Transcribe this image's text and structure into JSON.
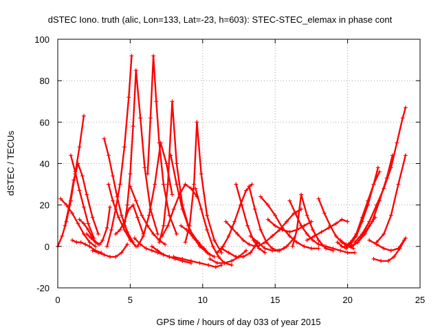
{
  "chart_data": {
    "type": "scatter",
    "title": "dSTEC Iono. truth (alic, Lon=133, Lat=-23, h=603): STEC-STEC_elemax in phase cont",
    "xlabel": "GPS time / hours of day 033 of year 2015",
    "ylabel": "dSTEC  / TECUs",
    "xlim": [
      0,
      25
    ],
    "ylim": [
      -20,
      100
    ],
    "x_ticks": [
      0,
      5,
      10,
      15,
      20,
      25
    ],
    "y_ticks": [
      -20,
      0,
      20,
      40,
      60,
      80,
      100
    ],
    "x_tick_labels": [
      "0",
      "5",
      "10",
      "15",
      "20",
      "25"
    ],
    "y_tick_labels": [
      "-20",
      "0",
      "20",
      "40",
      "60",
      "80",
      "100"
    ],
    "grid": true,
    "marker": "+",
    "color": "#ff0000",
    "series": [
      {
        "x": [
          0.0,
          0.3,
          0.6,
          0.9,
          1.2,
          1.5,
          1.8
        ],
        "y": [
          0,
          5,
          12,
          22,
          35,
          48,
          63
        ]
      },
      {
        "x": [
          0.2,
          0.6,
          1.0,
          1.4,
          1.8,
          2.2,
          2.6
        ],
        "y": [
          23,
          20,
          16,
          11,
          6,
          2,
          0
        ]
      },
      {
        "x": [
          0.5,
          0.8,
          1.1,
          1.4,
          1.7,
          2.0,
          2.4,
          2.8
        ],
        "y": [
          10,
          20,
          32,
          40,
          34,
          25,
          14,
          6
        ]
      },
      {
        "x": [
          0.9,
          1.2,
          1.5,
          1.8,
          2.1,
          2.5
        ],
        "y": [
          44,
          36,
          27,
          19,
          11,
          4
        ]
      },
      {
        "x": [
          1.0,
          1.3,
          1.6,
          1.9,
          2.2,
          2.6,
          3.0
        ],
        "y": [
          3,
          2,
          2,
          1,
          0,
          -2,
          -3
        ]
      },
      {
        "x": [
          1.5,
          1.8,
          2.1,
          2.4,
          2.8
        ],
        "y": [
          13,
          11,
          8,
          4,
          1
        ]
      },
      {
        "x": [
          2.0,
          2.3,
          2.6,
          2.9,
          3.1,
          3.4,
          3.6
        ],
        "y": [
          6,
          4,
          2,
          1,
          3,
          9,
          19
        ]
      },
      {
        "x": [
          2.4,
          2.8,
          3.2,
          3.6,
          4.0,
          4.4,
          4.8
        ],
        "y": [
          -2,
          -3,
          -4,
          -5,
          -5,
          -3,
          1
        ]
      },
      {
        "x": [
          3.2,
          3.5,
          3.8,
          4.1,
          4.4,
          4.8,
          5.2
        ],
        "y": [
          52,
          44,
          34,
          24,
          15,
          7,
          2
        ]
      },
      {
        "x": [
          3.5,
          3.8,
          4.2,
          4.6,
          5.0,
          5.4
        ],
        "y": [
          30,
          22,
          14,
          8,
          3,
          0
        ]
      },
      {
        "x": [
          3.4,
          3.7,
          4.0,
          4.3,
          4.6,
          4.9,
          5.1
        ],
        "y": [
          0,
          8,
          18,
          30,
          48,
          72,
          92
        ]
      },
      {
        "x": [
          4.0,
          4.3,
          4.6,
          4.9,
          5.2,
          5.5,
          5.9
        ],
        "y": [
          6,
          8,
          12,
          18,
          20,
          14,
          6
        ]
      },
      {
        "x": [
          4.6,
          4.8,
          5.0,
          5.2,
          5.4,
          5.7,
          6.0,
          6.4,
          6.9
        ],
        "y": [
          10,
          20,
          35,
          58,
          85,
          62,
          38,
          18,
          6
        ]
      },
      {
        "x": [
          5.0,
          5.4,
          5.8,
          6.2,
          6.6,
          7.0,
          7.4
        ],
        "y": [
          29,
          22,
          15,
          10,
          6,
          3,
          1
        ]
      },
      {
        "x": [
          5.3,
          5.7,
          6.1,
          6.5,
          6.9,
          7.3,
          7.7
        ],
        "y": [
          4,
          1,
          -1,
          -2,
          -3,
          -4,
          -5
        ]
      },
      {
        "x": [
          6.2,
          6.4,
          6.6,
          6.8,
          7.0,
          7.3,
          7.7,
          8.2
        ],
        "y": [
          35,
          62,
          92,
          70,
          50,
          30,
          15,
          6
        ]
      },
      {
        "x": [
          5.5,
          5.9,
          6.3,
          6.7,
          7.1,
          7.5,
          7.9
        ],
        "y": [
          0,
          5,
          15,
          30,
          50,
          40,
          25
        ]
      },
      {
        "x": [
          6.5,
          6.9,
          7.3,
          7.7,
          8.1,
          8.6,
          9.2
        ],
        "y": [
          0,
          -2,
          -4,
          -5,
          -6,
          -7,
          -8
        ]
      },
      {
        "x": [
          7.0,
          7.3,
          7.6,
          7.9,
          8.2,
          8.6,
          9.1,
          9.7
        ],
        "y": [
          2,
          10,
          30,
          70,
          40,
          20,
          8,
          2
        ]
      },
      {
        "x": [
          7.8,
          8.2,
          8.6,
          9.0,
          9.4,
          9.8,
          10.3,
          10.8
        ],
        "y": [
          44,
          30,
          18,
          10,
          4,
          0,
          -3,
          -5
        ]
      },
      {
        "x": [
          7.2,
          7.6,
          8.0,
          8.4,
          8.8,
          9.2,
          9.6
        ],
        "y": [
          5,
          10,
          18,
          25,
          30,
          28,
          24
        ]
      },
      {
        "x": [
          8.5,
          8.9,
          9.3,
          9.7,
          10.1,
          10.5
        ],
        "y": [
          10,
          8,
          5,
          2,
          -1,
          -4
        ]
      },
      {
        "x": [
          8.8,
          9.1,
          9.4,
          9.6,
          9.9,
          10.3,
          10.8,
          11.3
        ],
        "y": [
          2,
          10,
          30,
          60,
          35,
          15,
          3,
          -3
        ]
      },
      {
        "x": [
          9.5,
          9.9,
          10.3,
          10.7,
          11.1,
          11.5,
          12.0
        ],
        "y": [
          28,
          18,
          8,
          0,
          -5,
          -8,
          -9
        ]
      },
      {
        "x": [
          8.0,
          8.6,
          9.2,
          9.8,
          10.4,
          10.9,
          11.3
        ],
        "y": [
          -5,
          -6,
          -7,
          -8,
          -9,
          -10,
          -9
        ]
      },
      {
        "x": [
          10.5,
          11.0,
          11.5,
          12.0,
          12.5,
          13.0
        ],
        "y": [
          -6,
          -8,
          -8,
          -7,
          -5,
          -2
        ]
      },
      {
        "x": [
          11.0,
          11.4,
          11.8,
          12.2,
          12.6,
          13.0,
          13.4
        ],
        "y": [
          -3,
          0,
          5,
          12,
          20,
          27,
          30
        ]
      },
      {
        "x": [
          11.3,
          11.8,
          12.3,
          12.8,
          13.3,
          13.8
        ],
        "y": [
          -1,
          -3,
          -5,
          -5,
          -3,
          2
        ]
      },
      {
        "x": [
          12.3,
          12.7,
          13.1,
          13.5,
          13.9,
          14.3
        ],
        "y": [
          30,
          20,
          10,
          3,
          -1,
          -3
        ]
      },
      {
        "x": [
          11.6,
          12.0,
          12.4,
          12.8,
          13.2,
          13.6
        ],
        "y": [
          12,
          9,
          6,
          3,
          1,
          0
        ]
      },
      {
        "x": [
          13.2,
          13.6,
          14.0,
          14.4,
          14.8,
          15.2,
          15.6
        ],
        "y": [
          29,
          18,
          8,
          2,
          -1,
          -2,
          -1
        ]
      },
      {
        "x": [
          13.3,
          13.8,
          14.3,
          14.8,
          15.3,
          15.8,
          16.3
        ],
        "y": [
          5,
          2,
          -1,
          -2,
          -2,
          0,
          4
        ]
      },
      {
        "x": [
          13.8,
          14.3,
          14.8,
          15.3,
          15.8,
          16.3,
          16.8
        ],
        "y": [
          0,
          2,
          5,
          8,
          12,
          16,
          18
        ]
      },
      {
        "x": [
          14.5,
          15.0,
          15.5,
          16.0,
          16.5,
          17.0,
          17.5
        ],
        "y": [
          13,
          10,
          8,
          7,
          8,
          10,
          12
        ]
      },
      {
        "x": [
          14.0,
          14.5,
          15.0,
          15.5,
          16.0,
          16.5,
          17.0,
          17.5,
          18.0
        ],
        "y": [
          24,
          20,
          15,
          9,
          5,
          2,
          0,
          -1,
          -1
        ]
      },
      {
        "x": [
          16.0,
          16.4,
          16.8,
          17.2,
          17.6,
          18.0,
          18.4
        ],
        "y": [
          22,
          16,
          10,
          6,
          3,
          1,
          0
        ]
      },
      {
        "x": [
          16.2,
          16.5,
          16.8,
          17.2,
          17.6,
          18.0,
          18.5,
          19.0
        ],
        "y": [
          0,
          8,
          25,
          15,
          8,
          3,
          -1,
          -2
        ]
      },
      {
        "x": [
          18.0,
          18.4,
          18.8,
          19.2,
          19.6,
          20.0,
          20.4
        ],
        "y": [
          23,
          16,
          10,
          5,
          2,
          0,
          -1
        ]
      },
      {
        "x": [
          17.2,
          17.7,
          18.2,
          18.7,
          19.2,
          19.6,
          20.0
        ],
        "y": [
          3,
          5,
          7,
          9,
          11,
          13,
          12
        ]
      },
      {
        "x": [
          18.5,
          19.0,
          19.5,
          20.0,
          20.5
        ],
        "y": [
          0,
          -1,
          -2,
          -3,
          -3
        ]
      },
      {
        "x": [
          19.3,
          19.6,
          19.9,
          20.2,
          20.6,
          21.0,
          21.4,
          21.8,
          22.1
        ],
        "y": [
          2,
          0,
          -1,
          1,
          5,
          12,
          20,
          30,
          38
        ]
      },
      {
        "x": [
          19.8,
          20.2,
          20.6,
          21.0,
          21.4,
          21.8,
          22.2
        ],
        "y": [
          0,
          2,
          6,
          14,
          22,
          30,
          36
        ]
      },
      {
        "x": [
          19.5,
          19.9,
          20.3,
          20.7,
          21.1,
          21.5,
          21.9
        ],
        "y": [
          3,
          1,
          0,
          2,
          6,
          10,
          14
        ]
      },
      {
        "x": [
          20.2,
          20.7,
          21.2,
          21.7,
          22.2,
          22.7,
          23.1
        ],
        "y": [
          0,
          2,
          6,
          12,
          22,
          33,
          44
        ]
      },
      {
        "x": [
          20.5,
          21.0,
          21.5,
          22.0,
          22.5,
          23.0,
          23.4,
          23.8,
          24.0
        ],
        "y": [
          2,
          6,
          12,
          20,
          28,
          38,
          50,
          62,
          67
        ]
      },
      {
        "x": [
          21.5,
          22.0,
          22.5,
          23.0,
          23.5,
          23.9
        ],
        "y": [
          3,
          1,
          -1,
          -2,
          -1,
          3
        ]
      },
      {
        "x": [
          21.8,
          22.3,
          22.8,
          23.2,
          23.6,
          24.0
        ],
        "y": [
          -6,
          -7,
          -7,
          -5,
          -1,
          4
        ]
      },
      {
        "x": [
          22.0,
          22.5,
          23.0,
          23.5,
          24.0
        ],
        "y": [
          2,
          6,
          15,
          30,
          44
        ]
      }
    ]
  }
}
